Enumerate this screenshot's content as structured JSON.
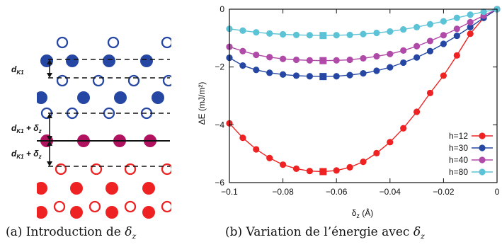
{
  "figure": {
    "panel_a": {
      "caption_prefix": "(a) Introduction de ",
      "caption_symbol": "δ",
      "caption_sub": "z",
      "labels": [
        {
          "main": "d",
          "sub": "K1",
          "suffix": ""
        },
        {
          "main": "d",
          "sub": "K1",
          "suffix": " + δ"
        },
        {
          "main": "d",
          "sub": "K1",
          "suffix": " + δ"
        }
      ],
      "suffix_sub": "z",
      "colors": {
        "blue": "#2547a3",
        "magenta": "#b0125f",
        "red": "#ee2222"
      }
    },
    "panel_b": {
      "caption_prefix": "(b) Variation de l’énergie avec ",
      "caption_symbol": "δ",
      "caption_sub": "z"
    }
  },
  "chart_data": {
    "type": "line",
    "ylabel": "ΔE (mJ/m²)",
    "xlabel_main": "δ",
    "xlabel_sub": "z",
    "xlabel_unit": " (Å)",
    "xlim": [
      -0.1,
      0
    ],
    "ylim": [
      -6,
      0
    ],
    "xticks": [
      -0.1,
      -0.08,
      -0.06,
      -0.04,
      -0.02,
      0
    ],
    "xtick_labels": [
      "−0.1",
      "−0.08",
      "−0.06",
      "−0.04",
      "−0.02",
      "0"
    ],
    "yticks": [
      -6,
      -4,
      -2,
      0
    ],
    "ytick_labels": [
      "−6",
      "−4",
      "−2",
      "0"
    ],
    "legend_position": "bottom-right",
    "x": [
      -0.1,
      -0.095,
      -0.09,
      -0.085,
      -0.08,
      -0.075,
      -0.07,
      -0.065,
      -0.06,
      -0.055,
      -0.05,
      -0.045,
      -0.04,
      -0.035,
      -0.03,
      -0.025,
      -0.02,
      -0.015,
      -0.01,
      -0.005,
      0
    ],
    "series": [
      {
        "name": "h=12",
        "color": "#ee2222",
        "min_index": 7,
        "values": [
          -3.95,
          -4.45,
          -4.85,
          -5.15,
          -5.38,
          -5.52,
          -5.6,
          -5.62,
          -5.58,
          -5.47,
          -5.28,
          -4.98,
          -4.6,
          -4.12,
          -3.55,
          -2.9,
          -2.3,
          -1.6,
          -0.85,
          -0.3,
          0
        ]
      },
      {
        "name": "h=30",
        "color": "#2547a3",
        "min_index": 7,
        "values": [
          -1.68,
          -1.95,
          -2.1,
          -2.2,
          -2.26,
          -2.3,
          -2.32,
          -2.33,
          -2.32,
          -2.28,
          -2.22,
          -2.13,
          -2.01,
          -1.85,
          -1.67,
          -1.45,
          -1.2,
          -0.92,
          -0.62,
          -0.3,
          0
        ]
      },
      {
        "name": "h=40",
        "color": "#b04aa8",
        "min_index": 7,
        "values": [
          -1.3,
          -1.45,
          -1.58,
          -1.66,
          -1.72,
          -1.75,
          -1.77,
          -1.78,
          -1.77,
          -1.75,
          -1.7,
          -1.63,
          -1.55,
          -1.43,
          -1.28,
          -1.1,
          -0.9,
          -0.68,
          -0.45,
          -0.22,
          0
        ]
      },
      {
        "name": "h=80",
        "color": "#5cc3d6",
        "min_index": 7,
        "values": [
          -0.68,
          -0.74,
          -0.8,
          -0.84,
          -0.87,
          -0.89,
          -0.9,
          -0.91,
          -0.9,
          -0.89,
          -0.86,
          -0.82,
          -0.77,
          -0.7,
          -0.62,
          -0.52,
          -0.42,
          -0.3,
          -0.19,
          -0.09,
          0
        ]
      }
    ]
  }
}
